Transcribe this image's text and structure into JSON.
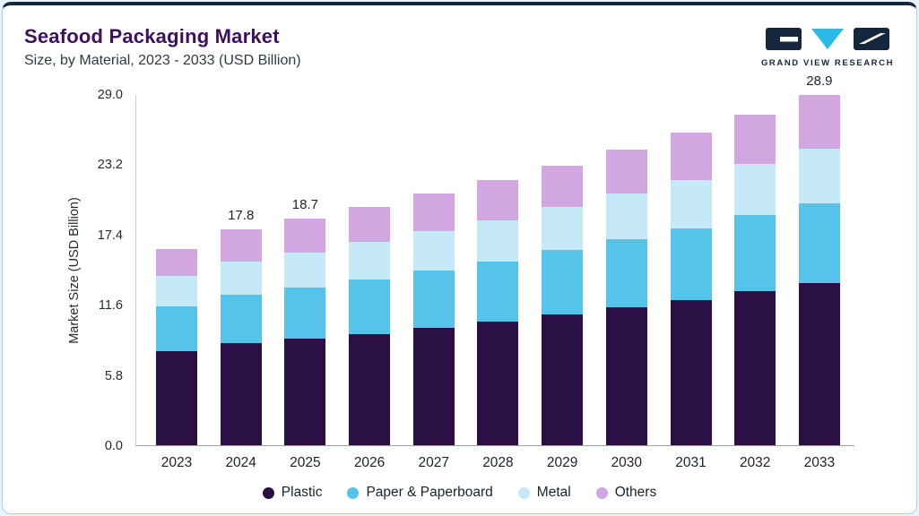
{
  "header": {
    "title": "Seafood Packaging Market",
    "subtitle": "Size, by Material, 2023 - 2033 (USD Billion)"
  },
  "logo": {
    "text": "GRAND VIEW RESEARCH",
    "navy": "#15263f",
    "cyan": "#2bb9e6"
  },
  "chart_data": {
    "type": "bar",
    "stacked": true,
    "title": "Seafood Packaging Market Size, by Material, 2023 - 2033 (USD Billion)",
    "ylabel": "Market Size (USD Billion)",
    "xlabel": "",
    "grid": false,
    "legend_position": "bottom",
    "ylim": [
      0,
      29
    ],
    "yticks": [
      "0.0",
      "5.8",
      "11.6",
      "17.4",
      "23.2",
      "29.0"
    ],
    "ytick_values": [
      0,
      5.8,
      11.6,
      17.4,
      23.2,
      29.0
    ],
    "categories": [
      "2023",
      "2024",
      "2025",
      "2026",
      "2027",
      "2028",
      "2029",
      "2030",
      "2031",
      "2032",
      "2033"
    ],
    "series": [
      {
        "name": "Plastic",
        "color": "#2b1045",
        "values": [
          7.8,
          8.4,
          8.8,
          9.2,
          9.7,
          10.2,
          10.8,
          11.4,
          12.0,
          12.7,
          13.4
        ]
      },
      {
        "name": "Paper & Paperboard",
        "color": "#55c3ea",
        "values": [
          3.7,
          4.0,
          4.2,
          4.5,
          4.7,
          5.0,
          5.3,
          5.6,
          5.9,
          6.3,
          6.6
        ]
      },
      {
        "name": "Metal",
        "color": "#c6e9f8",
        "values": [
          2.5,
          2.8,
          2.9,
          3.1,
          3.3,
          3.4,
          3.6,
          3.8,
          4.0,
          4.2,
          4.5
        ]
      },
      {
        "name": "Others",
        "color": "#d2a6e0",
        "values": [
          2.2,
          2.6,
          2.8,
          2.9,
          3.1,
          3.3,
          3.4,
          3.6,
          3.9,
          4.1,
          4.4
        ]
      }
    ],
    "totals": [
      16.2,
      17.8,
      18.7,
      19.7,
      20.8,
      21.9,
      23.1,
      24.4,
      25.8,
      27.3,
      28.9
    ],
    "bar_labels": [
      "",
      "17.8",
      "18.7",
      "",
      "",
      "",
      "",
      "",
      "",
      "",
      "28.9"
    ]
  }
}
